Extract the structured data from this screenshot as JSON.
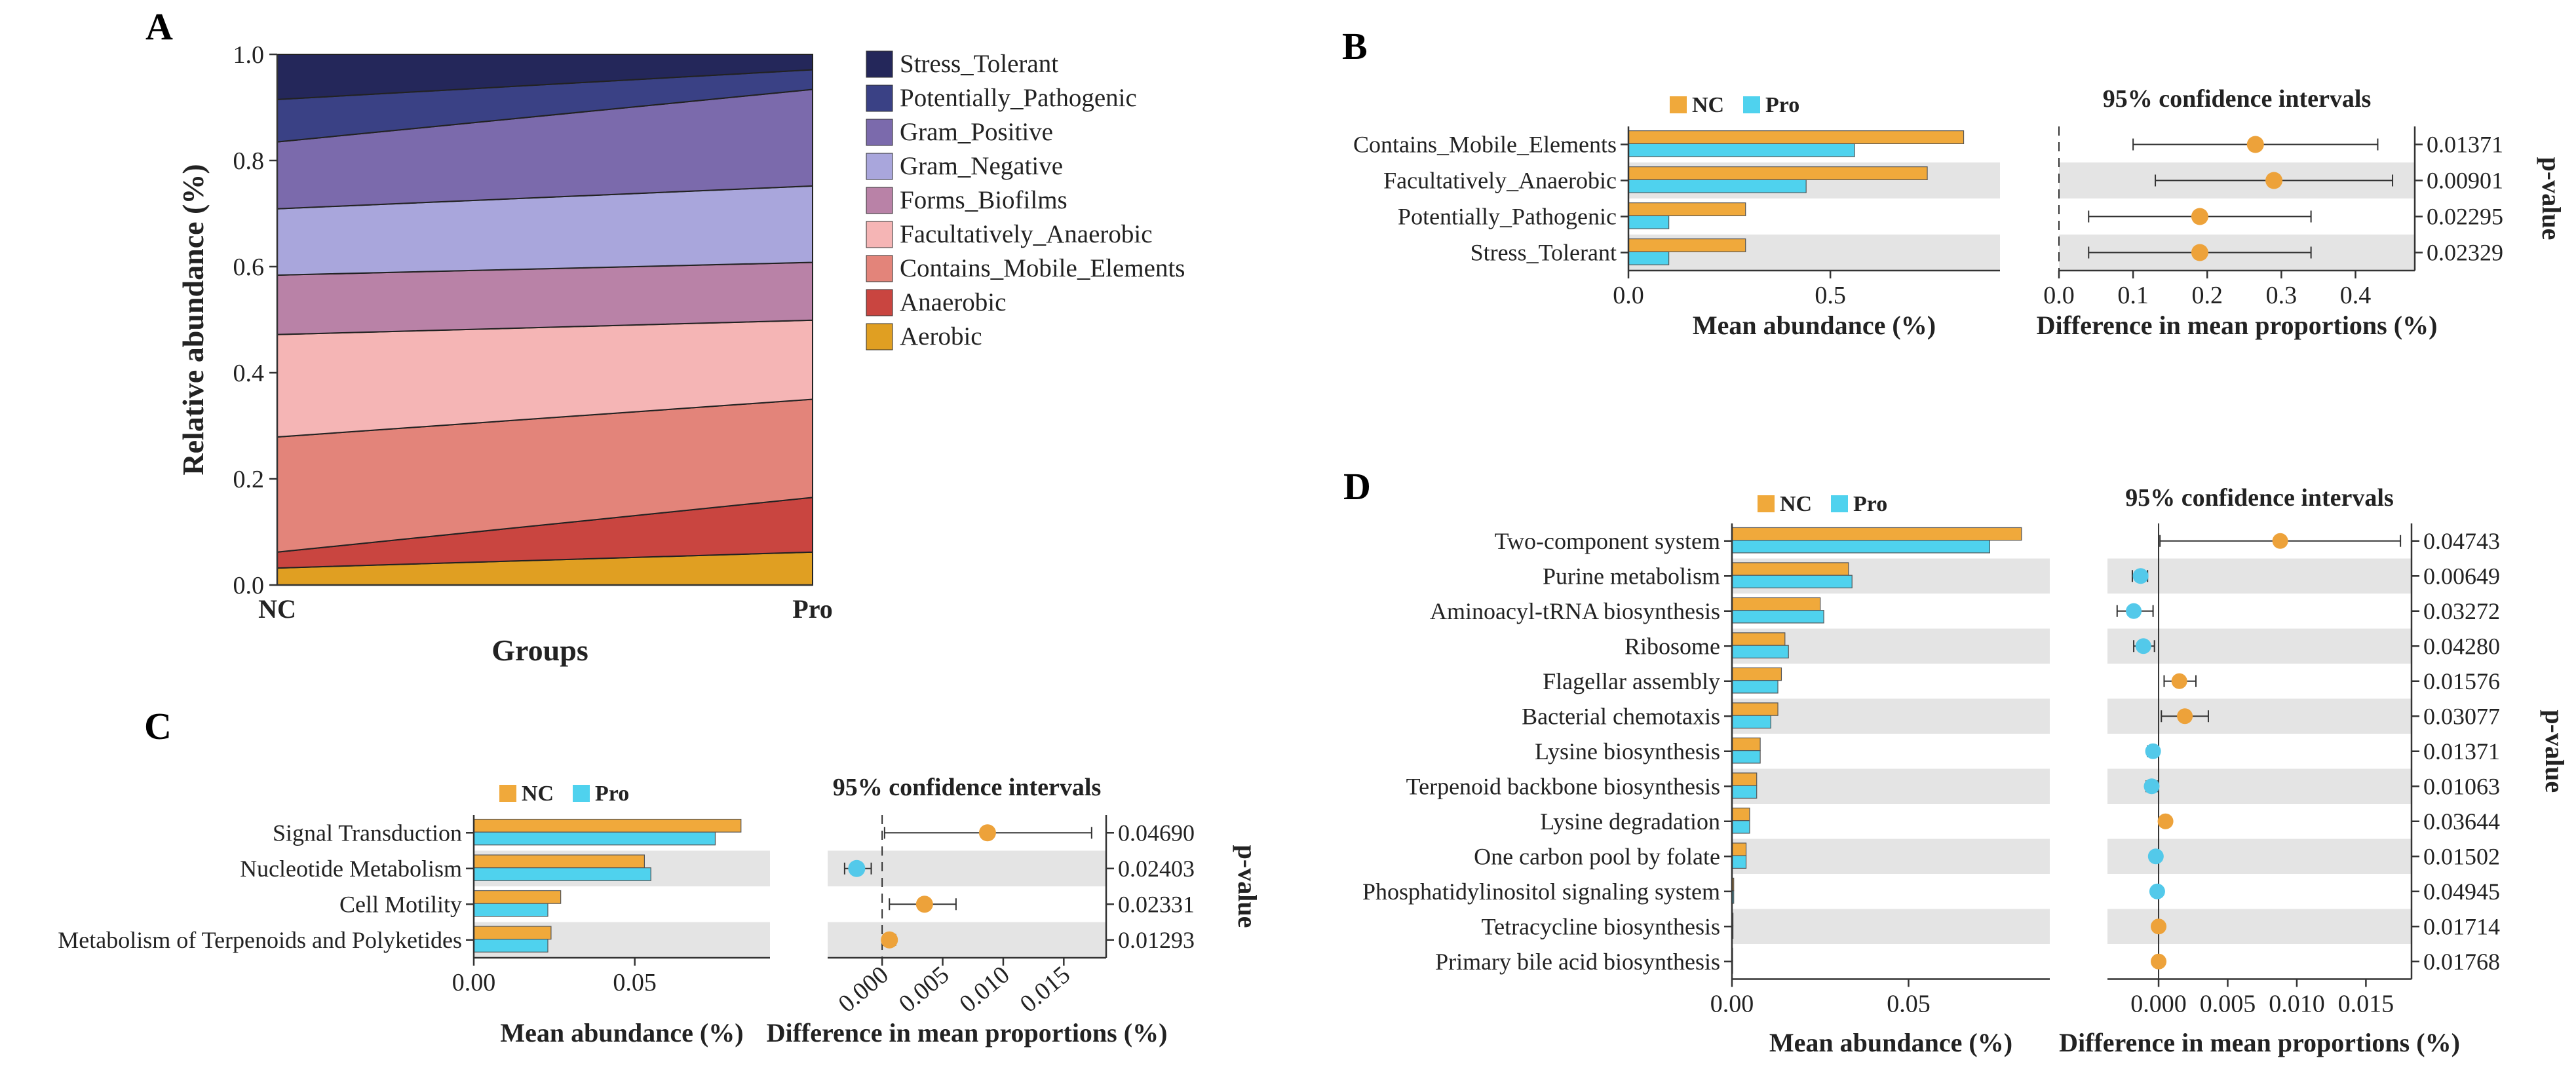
{
  "panel_labels": {
    "A": "A",
    "B": "B",
    "C": "C",
    "D": "D"
  },
  "colors": {
    "NC": "#f0a93b",
    "Pro": "#4fd2ee",
    "shade": "#e4e4e4",
    "point_NC": "#eda23a",
    "point_Pro": "#53c9ea"
  },
  "chart_data": [
    {
      "id": "A",
      "type": "area",
      "title": "",
      "xlabel": "Groups",
      "ylabel": "Relative abundance (%)",
      "categories": [
        "NC",
        "Pro"
      ],
      "ylim": [
        0,
        1
      ],
      "yticks": [
        "0.0",
        "0.2",
        "0.4",
        "0.6",
        "0.8",
        "1.0"
      ],
      "series": [
        {
          "name": "Aerobic",
          "color": "#e09f22",
          "values": [
            0.032,
            0.062
          ]
        },
        {
          "name": "Anaerobic",
          "color": "#c94540",
          "values": [
            0.03,
            0.103
          ]
        },
        {
          "name": "Contains_Mobile_Elements",
          "color": "#e3847a",
          "values": [
            0.217,
            0.185
          ]
        },
        {
          "name": "Facultatively_Anaerobic",
          "color": "#f5b5b5",
          "values": [
            0.193,
            0.149
          ]
        },
        {
          "name": "Forms_Biofilms",
          "color": "#b982a7",
          "values": [
            0.112,
            0.109
          ]
        },
        {
          "name": "Gram_Negative",
          "color": "#a9a6dc",
          "values": [
            0.125,
            0.144
          ]
        },
        {
          "name": "Gram_Positive",
          "color": "#7b6aac",
          "values": [
            0.126,
            0.182
          ]
        },
        {
          "name": "Potentially_Pathogenic",
          "color": "#3a4185",
          "values": [
            0.08,
            0.037
          ]
        },
        {
          "name": "Stress_Tolerant",
          "color": "#24275a",
          "values": [
            0.085,
            0.029
          ]
        }
      ],
      "legend_order": [
        "Stress_Tolerant",
        "Potentially_Pathogenic",
        "Gram_Positive",
        "Gram_Negative",
        "Forms_Biofilms",
        "Facultatively_Anaerobic",
        "Contains_Mobile_Elements",
        "Anaerobic",
        "Aerobic"
      ]
    },
    {
      "id": "B",
      "type": "bar",
      "title": "95% confidence intervals",
      "xlabel": "Mean abundance (%)",
      "ci_xlabel": "Difference in mean proportions (%)",
      "pvalue_label": "p-value",
      "legend": [
        "NC",
        "Pro"
      ],
      "categories": [
        "Contains_Mobile_Elements",
        "Facultatively_Anaerobic",
        "Potentially_Pathogenic",
        "Stress_Tolerant"
      ],
      "series": [
        {
          "name": "NC",
          "values": [
            0.83,
            0.74,
            0.29,
            0.29
          ]
        },
        {
          "name": "Pro",
          "values": [
            0.56,
            0.44,
            0.1,
            0.1
          ]
        }
      ],
      "xlim": [
        0,
        0.92
      ],
      "xticks": [
        {
          "v": 0,
          "t": "0.0"
        },
        {
          "v": 0.5,
          "t": "0.5"
        }
      ],
      "ci_xlim": [
        0,
        0.48
      ],
      "ci_xticks": [
        {
          "v": 0,
          "t": "0.0"
        },
        {
          "v": 0.1,
          "t": "0.1"
        },
        {
          "v": 0.2,
          "t": "0.2"
        },
        {
          "v": 0.3,
          "t": "0.3"
        },
        {
          "v": 0.4,
          "t": "0.4"
        }
      ],
      "ci_zero_line": true,
      "ci_tick_rotate": false,
      "diff": [
        0.265,
        0.29,
        0.19,
        0.19
      ],
      "ci_low": [
        0.1,
        0.13,
        0.04,
        0.04
      ],
      "ci_high": [
        0.43,
        0.45,
        0.34,
        0.34
      ],
      "p_values": [
        "0.01371",
        "0.00901",
        "0.02295",
        "0.02329"
      ]
    },
    {
      "id": "C",
      "type": "bar",
      "title": "95% confidence intervals",
      "xlabel": "Mean abundance (%)",
      "ci_xlabel": "Difference in mean proportions (%)",
      "pvalue_label": "p-value",
      "legend": [
        "NC",
        "Pro"
      ],
      "categories": [
        "Signal Transduction",
        "Nucleotide Metabolism",
        "Cell Motility",
        "Metabolism of Terpenoids and Polyketides"
      ],
      "series": [
        {
          "name": "NC",
          "values": [
            0.083,
            0.053,
            0.027,
            0.024
          ]
        },
        {
          "name": "Pro",
          "values": [
            0.075,
            0.055,
            0.023,
            0.023
          ]
        }
      ],
      "xlim": [
        0,
        0.092
      ],
      "xticks": [
        {
          "v": 0,
          "t": "0.00"
        },
        {
          "v": 0.05,
          "t": "0.05"
        }
      ],
      "ci_xlim": [
        -0.0045,
        0.0185
      ],
      "ci_xticks": [
        {
          "v": 0,
          "t": "0.000"
        },
        {
          "v": 0.005,
          "t": "0.005"
        },
        {
          "v": 0.01,
          "t": "0.010"
        },
        {
          "v": 0.015,
          "t": "0.015"
        }
      ],
      "ci_zero_line": true,
      "ci_tick_rotate": true,
      "diff": [
        0.0087,
        -0.0021,
        0.0035,
        0.0006
      ],
      "ci_low": [
        0.0002,
        -0.0031,
        0.0006,
        0.0001
      ],
      "ci_high": [
        0.0173,
        -0.0009,
        0.0061,
        0.0011
      ],
      "p_values": [
        "0.04690",
        "0.02403",
        "0.02331",
        "0.01293"
      ]
    },
    {
      "id": "D",
      "type": "bar",
      "title": "95% confidence intervals",
      "xlabel": "Mean abundance (%)",
      "ci_xlabel": "Difference in mean proportions (%)",
      "pvalue_label": "p-value",
      "legend": [
        "NC",
        "Pro"
      ],
      "categories": [
        "Two-component system",
        "Purine metabolism",
        "Aminoacyl-tRNA biosynthesis",
        "Ribosome",
        "Flagellar assembly",
        "Bacterial chemotaxis",
        "Lysine biosynthesis",
        "Terpenoid backbone biosynthesis",
        "Lysine degradation",
        "One carbon pool by folate",
        "Phosphatidylinositol signaling system",
        "Tetracycline biosynthesis",
        "Primary bile acid biosynthesis"
      ],
      "series": [
        {
          "name": "NC",
          "values": [
            0.082,
            0.033,
            0.025,
            0.015,
            0.014,
            0.013,
            0.008,
            0.007,
            0.005,
            0.004,
            0.0005,
            0.0003,
            0.0002
          ]
        },
        {
          "name": "Pro",
          "values": [
            0.073,
            0.034,
            0.026,
            0.016,
            0.013,
            0.011,
            0.008,
            0.007,
            0.005,
            0.004,
            0.0005,
            0.0003,
            0.0002
          ]
        }
      ],
      "xlim": [
        0,
        0.09
      ],
      "xticks": [
        {
          "v": 0,
          "t": "0.00"
        },
        {
          "v": 0.05,
          "t": "0.05"
        }
      ],
      "ci_xlim": [
        -0.0037,
        0.0183
      ],
      "ci_xticks": [
        {
          "v": 0,
          "t": "0.000"
        },
        {
          "v": 0.005,
          "t": "0.005"
        },
        {
          "v": 0.01,
          "t": "0.010"
        },
        {
          "v": 0.015,
          "t": "0.015"
        }
      ],
      "ci_zero_line": false,
      "ci_tick_rotate": false,
      "diff": [
        0.0088,
        -0.0013,
        -0.0018,
        -0.0011,
        0.0015,
        0.0019,
        -0.0004,
        -0.0005,
        0.0005,
        -0.0002,
        -0.0001,
        0.0,
        0.0
      ],
      "ci_low": [
        0.0001,
        -0.0019,
        -0.003,
        -0.0018,
        0.0004,
        0.0002,
        -0.0008,
        -0.0009,
        0.0003,
        -0.0004,
        -0.0002,
        -0.0001,
        -0.0001
      ],
      "ci_high": [
        0.0175,
        -0.0008,
        -0.0004,
        -0.0003,
        0.0027,
        0.0036,
        0.0,
        -0.0001,
        0.0007,
        0.0,
        0.0,
        0.0001,
        0.0001
      ],
      "p_values": [
        "0.04743",
        "0.00649",
        "0.03272",
        "0.04280",
        "0.01576",
        "0.03077",
        "0.01371",
        "0.01063",
        "0.03644",
        "0.01502",
        "0.04945",
        "0.01714",
        "0.01768"
      ]
    }
  ]
}
